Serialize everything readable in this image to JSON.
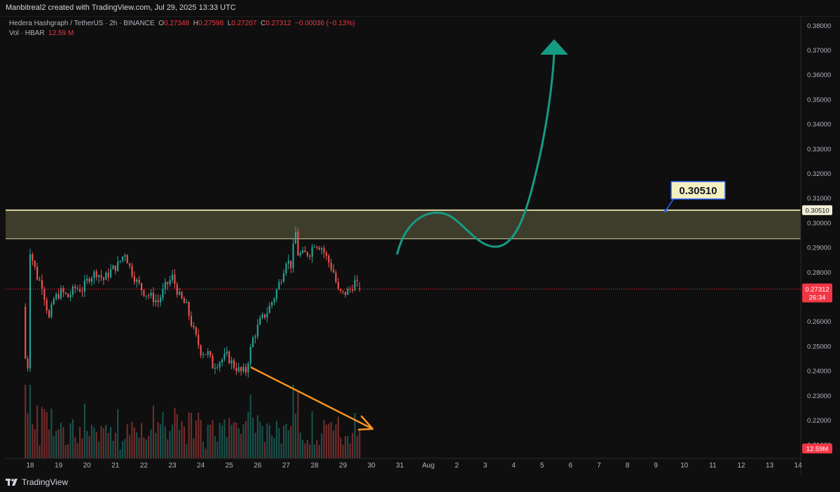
{
  "header": {
    "attribution": "Manbitreal2 created with TradingView.com, Jul 29, 2025 13:33 UTC"
  },
  "legend": {
    "symbol": "Hedera Hashgraph / TetherUS · 2h · BINANCE",
    "open_label": "O",
    "open": "0.27348",
    "high_label": "H",
    "high": "0.27598",
    "low_label": "L",
    "low": "0.27207",
    "close_label": "C",
    "close": "0.27312",
    "change": "−0.00036 (−0.13%)",
    "volume_label": "Vol · HBAR",
    "volume": "12.59 M"
  },
  "footer": {
    "brand": "TradingView"
  },
  "chart_data": {
    "type": "candlestick",
    "symbol": "Hedera Hashgraph / TetherUS",
    "interval": "2h",
    "exchange": "BINANCE",
    "y_axis": {
      "ticks": [
        "0.38000",
        "0.37000",
        "0.36000",
        "0.35000",
        "0.34000",
        "0.33000",
        "0.32000",
        "0.31000",
        "0.30000",
        "0.29000",
        "0.28000",
        "0.27000",
        "0.26000",
        "0.25000",
        "0.24000",
        "0.23000",
        "0.22000",
        "0.21000"
      ],
      "range": [
        0.2045,
        0.3835
      ]
    },
    "x_axis": {
      "ticks": [
        "18",
        "19",
        "20",
        "21",
        "22",
        "23",
        "24",
        "25",
        "26",
        "27",
        "28",
        "29",
        "30",
        "31",
        "Aug",
        "2",
        "3",
        "4",
        "5",
        "6",
        "7",
        "8",
        "9",
        "10",
        "11",
        "12",
        "13",
        "14"
      ]
    },
    "price_label": {
      "value": "0.27312",
      "countdown": "26:34",
      "color": "#f23645"
    },
    "level_label": {
      "value": "0.30510"
    },
    "volume_label": {
      "value": "12.59M"
    },
    "annotations": {
      "zone": {
        "top": 0.3051,
        "bottom": 0.2935,
        "border_color": "#d6d3a0",
        "fill_color": "#3e3d2c"
      },
      "callout": {
        "text": "0.30510",
        "bg": "#f5f0c0",
        "border": "#2962ff"
      },
      "up_arrow_color": "#169b83",
      "down_arrow_color": "#f7931e"
    },
    "colors": {
      "up": "#26a69a",
      "down": "#ef5350"
    },
    "anchors": [
      [
        "17T18",
        0.266
      ],
      [
        "17T20",
        0.245
      ],
      [
        "17T22",
        0.242
      ],
      [
        "18T00",
        0.289
      ],
      [
        "18T02",
        0.285
      ],
      [
        "18T06",
        0.278
      ],
      [
        "18T10",
        0.275
      ],
      [
        "18T16",
        0.261
      ],
      [
        "18T20",
        0.269
      ],
      [
        "19T02",
        0.272
      ],
      [
        "19T08",
        0.27
      ],
      [
        "19T14",
        0.2735
      ],
      [
        "19T20",
        0.273
      ],
      [
        "20T02",
        0.278
      ],
      [
        "20T08",
        0.28
      ],
      [
        "20T14",
        0.277
      ],
      [
        "20T20",
        0.2805
      ],
      [
        "21T02",
        0.283
      ],
      [
        "21T08",
        0.288
      ],
      [
        "21T12",
        0.282
      ],
      [
        "21T18",
        0.276
      ],
      [
        "22T00",
        0.272
      ],
      [
        "22T06",
        0.27
      ],
      [
        "22T12",
        0.268
      ],
      [
        "22T18",
        0.274
      ],
      [
        "23T00",
        0.278
      ],
      [
        "23T06",
        0.27
      ],
      [
        "23T12",
        0.266
      ],
      [
        "23T18",
        0.256
      ],
      [
        "24T00",
        0.248
      ],
      [
        "24T06",
        0.247
      ],
      [
        "24T10",
        0.242
      ],
      [
        "24T16",
        0.244
      ],
      [
        "24T22",
        0.246
      ],
      [
        "25T04",
        0.242
      ],
      [
        "25T10",
        0.2395
      ],
      [
        "25T14",
        0.24
      ],
      [
        "25T20",
        0.253
      ],
      [
        "26T02",
        0.26
      ],
      [
        "26T08",
        0.264
      ],
      [
        "26T14",
        0.27
      ],
      [
        "26T20",
        0.278
      ],
      [
        "27T00",
        0.285
      ],
      [
        "27T04",
        0.283
      ],
      [
        "27T08",
        0.296
      ],
      [
        "27T10",
        0.2875
      ],
      [
        "27T14",
        0.287
      ],
      [
        "27T20",
        0.288
      ],
      [
        "28T00",
        0.292
      ],
      [
        "28T06",
        0.29
      ],
      [
        "28T10",
        0.286
      ],
      [
        "28T16",
        0.28
      ],
      [
        "28T20",
        0.272
      ],
      [
        "29T00",
        0.271
      ],
      [
        "29T06",
        0.273
      ],
      [
        "29T10",
        0.276
      ],
      [
        "29T14",
        0.2731
      ]
    ]
  }
}
